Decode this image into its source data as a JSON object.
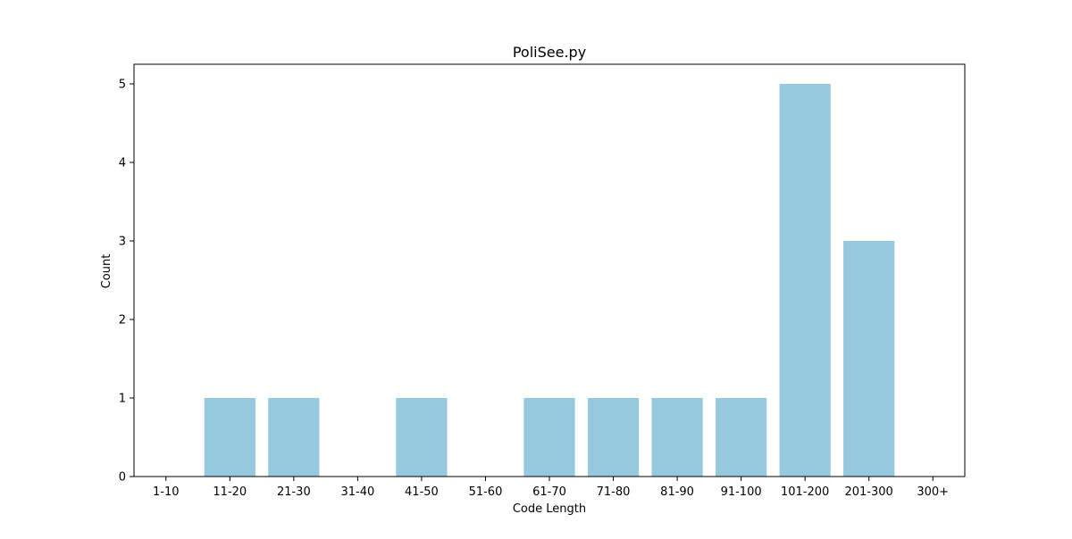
{
  "chart_data": {
    "type": "bar",
    "title": "PoliSee.py",
    "xlabel": "Code Length",
    "ylabel": "Count",
    "categories": [
      "1-10",
      "11-20",
      "21-30",
      "31-40",
      "41-50",
      "51-60",
      "61-70",
      "71-80",
      "81-90",
      "91-100",
      "101-200",
      "201-300",
      "300+"
    ],
    "values": [
      0,
      1,
      1,
      0,
      1,
      0,
      1,
      1,
      1,
      1,
      5,
      3,
      0
    ],
    "ylim": [
      0,
      5.25
    ],
    "yticks": [
      0,
      1,
      2,
      3,
      4,
      5
    ],
    "grid": false,
    "legend": "none",
    "colors": {
      "bar": "#96c9dd",
      "axis": "#000000",
      "background": "#ffffff"
    }
  }
}
